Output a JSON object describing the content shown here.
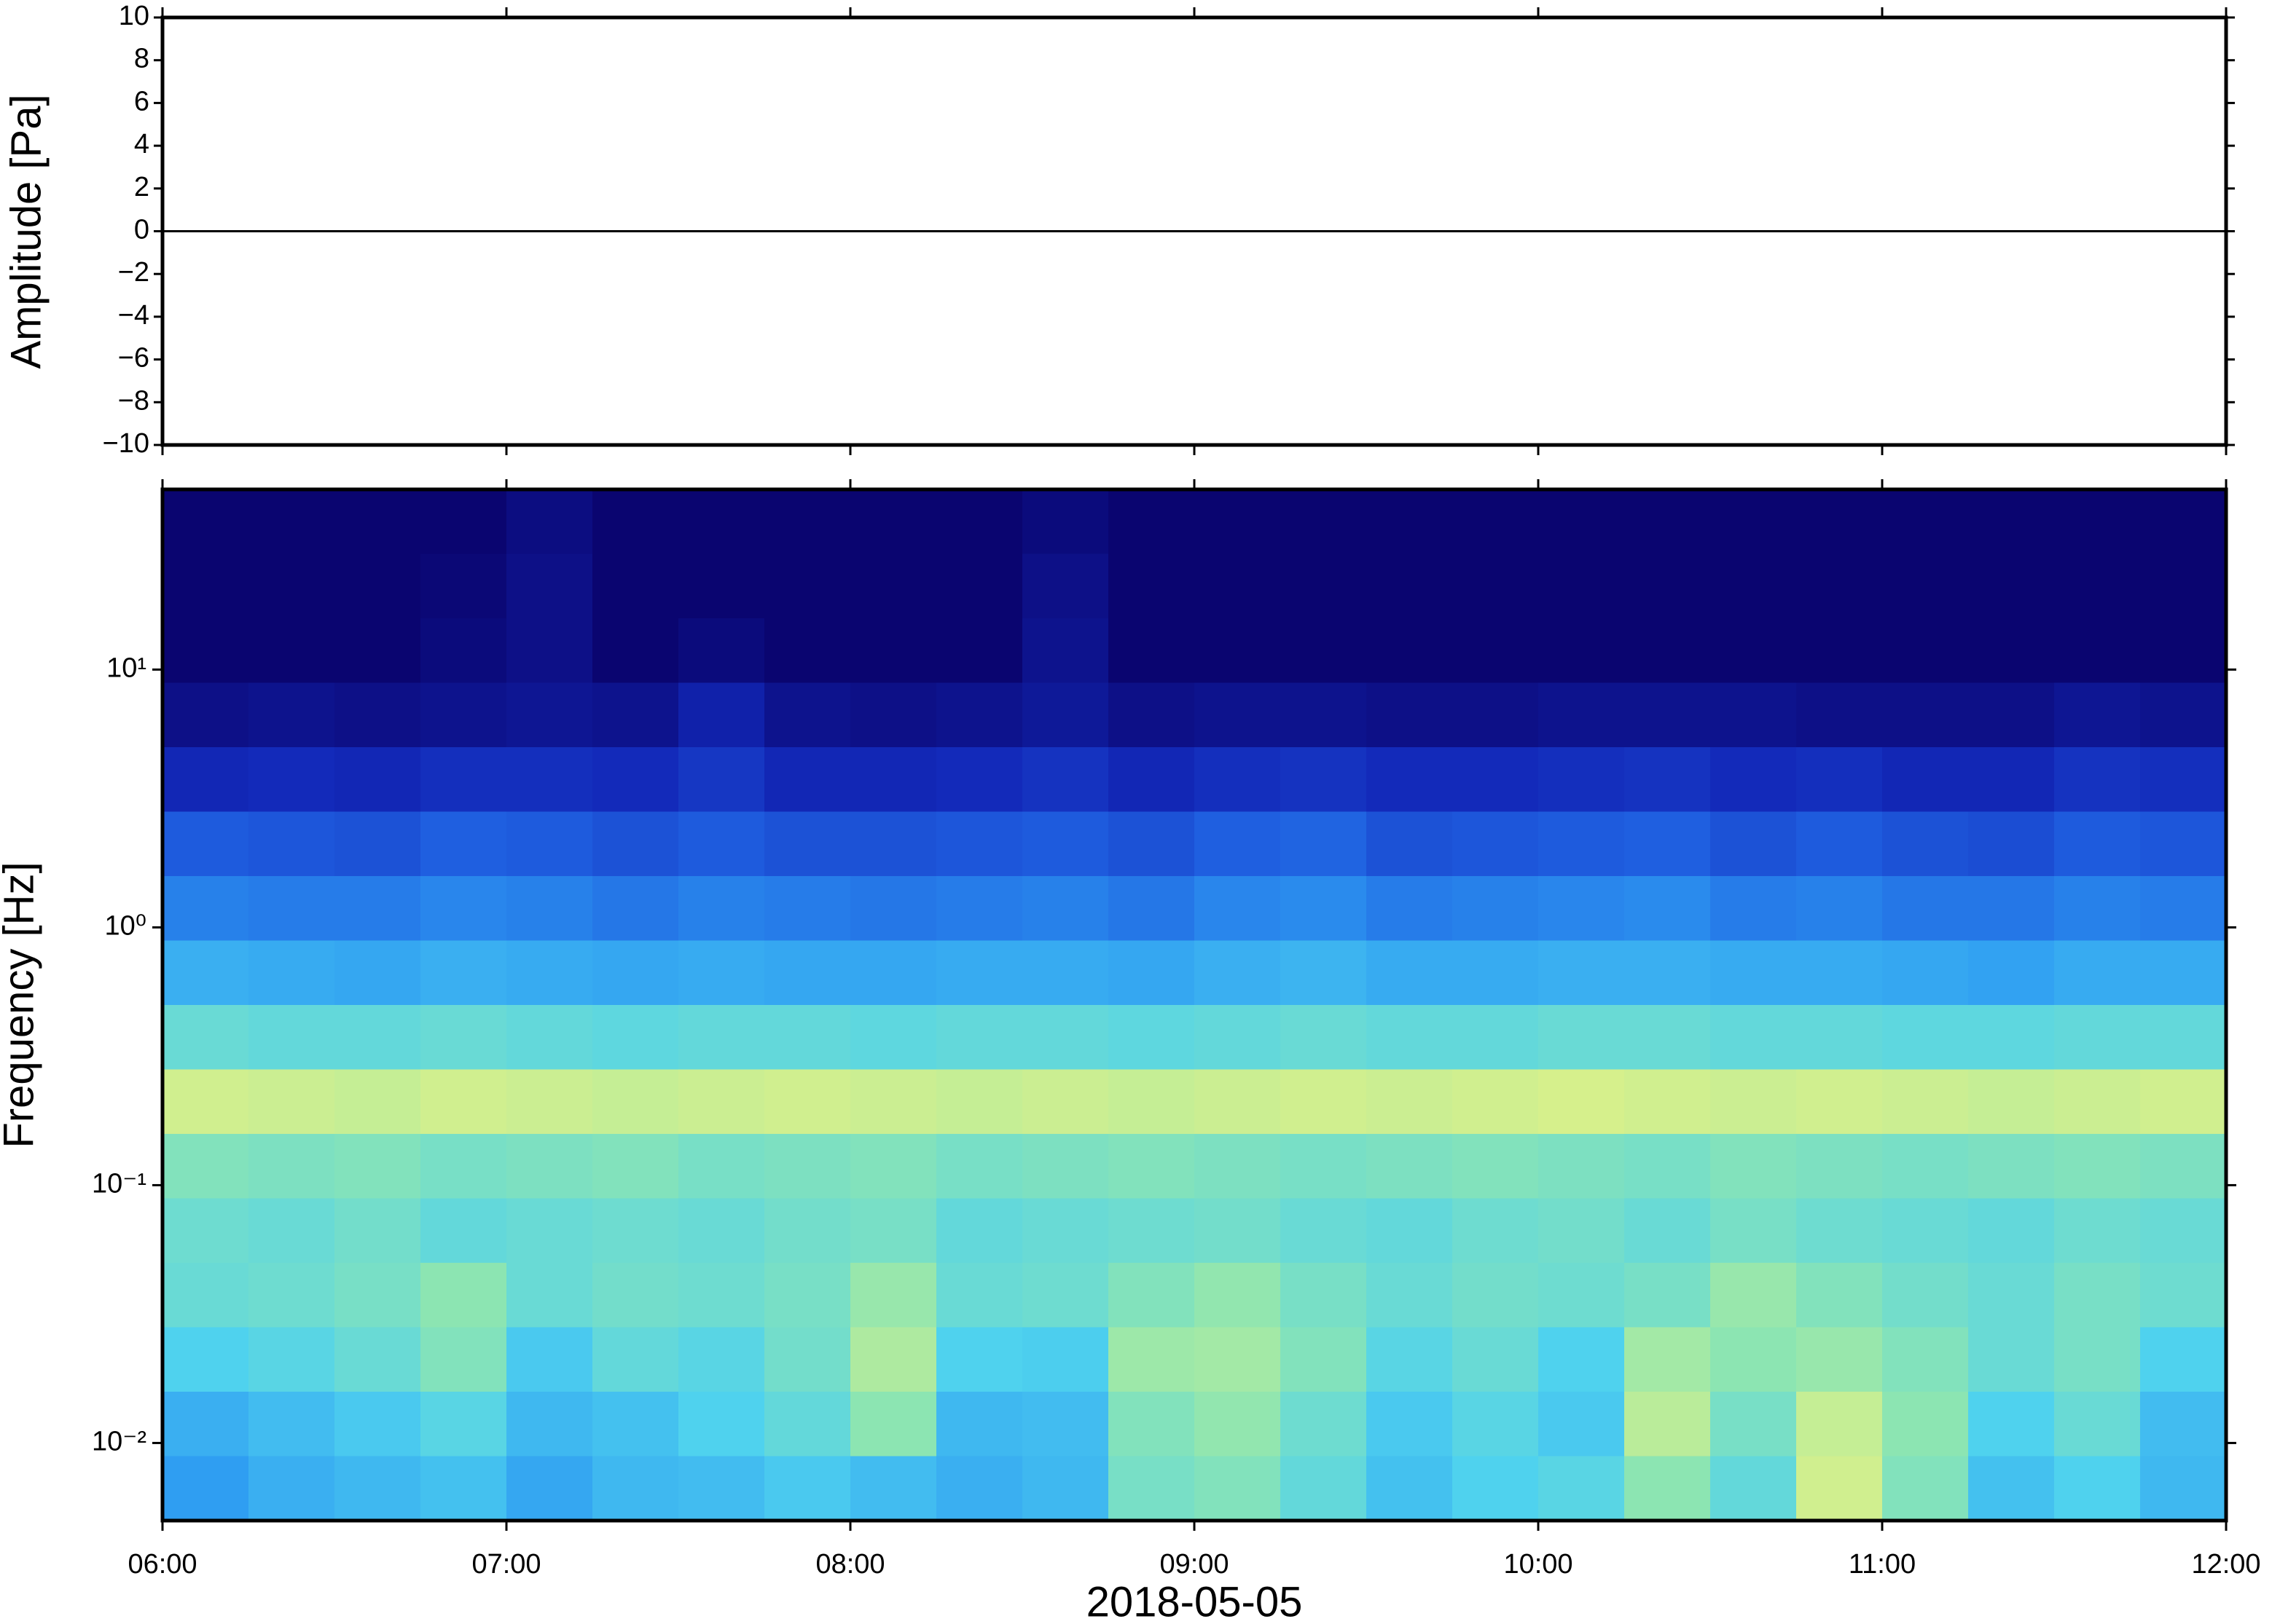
{
  "chart_data": [
    {
      "type": "line",
      "ylabel": "Amplitude [Pa]",
      "color": "#000000",
      "x": [
        "06:00",
        "06:30",
        "07:00",
        "07:30",
        "08:00",
        "08:30",
        "09:00",
        "09:30",
        "10:00",
        "10:30",
        "11:00",
        "11:30",
        "12:00"
      ],
      "values": [
        0,
        0,
        0,
        0,
        0,
        0,
        0,
        0,
        0,
        0,
        0,
        0,
        0
      ],
      "xlim": [
        "06:00",
        "12:00"
      ],
      "ylim": [
        -10,
        10
      ],
      "yticks": [
        {
          "value": -10,
          "label": "−10"
        },
        {
          "value": -8,
          "label": "−8"
        },
        {
          "value": -6,
          "label": "−6"
        },
        {
          "value": -4,
          "label": "−4"
        },
        {
          "value": -2,
          "label": "−2"
        },
        0,
        2,
        4,
        6,
        8,
        10
      ]
    },
    {
      "type": "heatmap",
      "ylabel": "Frequency [Hz]",
      "xlabel": "2018-05-05",
      "xlim": [
        "06:00",
        "12:00"
      ],
      "xticks": [
        "06:00",
        "07:00",
        "08:00",
        "09:00",
        "10:00",
        "11:00",
        "12:00"
      ],
      "ylim": [
        0.005,
        50
      ],
      "log_y": true,
      "yticks": [
        {
          "value": 0.01,
          "label": "10⁻²"
        },
        {
          "value": 0.1,
          "label": "10⁻¹"
        },
        {
          "value": 1,
          "label": "10⁰"
        },
        {
          "value": 10,
          "label": "10¹"
        }
      ],
      "colormap": [
        "#0a0570",
        "#1228b8",
        "#1f5fe0",
        "#2e9cf2",
        "#4fd2ee",
        "#8fe6b0",
        "#d6f08c",
        "#f6e27a",
        "#f5b060"
      ],
      "z": [
        [
          0,
          0,
          0,
          0,
          0.03,
          0,
          0,
          0,
          0,
          0,
          0.02,
          0,
          0,
          0,
          0,
          0,
          0,
          0,
          0,
          0,
          0,
          0,
          0,
          0
        ],
        [
          0,
          0,
          0,
          0.01,
          0.04,
          0,
          0,
          0,
          0,
          0,
          0.04,
          0,
          0,
          0,
          0,
          0,
          0,
          0,
          0,
          0,
          0,
          0,
          0,
          0
        ],
        [
          0,
          0,
          0,
          0.02,
          0.04,
          0,
          0.02,
          0,
          0,
          0,
          0.05,
          0,
          0,
          0,
          0,
          0,
          0,
          0,
          0,
          0,
          0,
          0,
          0,
          0
        ],
        [
          0.04,
          0.05,
          0.04,
          0.05,
          0.06,
          0.05,
          0.1,
          0.05,
          0.04,
          0.05,
          0.07,
          0.04,
          0.05,
          0.05,
          0.04,
          0.04,
          0.05,
          0.05,
          0.05,
          0.04,
          0.04,
          0.04,
          0.06,
          0.05
        ],
        [
          0.12,
          0.13,
          0.12,
          0.14,
          0.14,
          0.13,
          0.16,
          0.12,
          0.12,
          0.13,
          0.15,
          0.12,
          0.14,
          0.15,
          0.13,
          0.13,
          0.14,
          0.15,
          0.13,
          0.14,
          0.12,
          0.12,
          0.15,
          0.14
        ],
        [
          0.24,
          0.23,
          0.22,
          0.25,
          0.24,
          0.22,
          0.24,
          0.22,
          0.22,
          0.23,
          0.24,
          0.22,
          0.25,
          0.26,
          0.22,
          0.23,
          0.24,
          0.25,
          0.22,
          0.24,
          0.22,
          0.21,
          0.24,
          0.23
        ],
        [
          0.32,
          0.31,
          0.31,
          0.33,
          0.32,
          0.3,
          0.32,
          0.31,
          0.3,
          0.31,
          0.32,
          0.3,
          0.33,
          0.34,
          0.31,
          0.32,
          0.33,
          0.34,
          0.31,
          0.32,
          0.3,
          0.3,
          0.32,
          0.31
        ],
        [
          0.42,
          0.41,
          0.4,
          0.42,
          0.41,
          0.4,
          0.41,
          0.4,
          0.4,
          0.41,
          0.41,
          0.4,
          0.42,
          0.43,
          0.41,
          0.41,
          0.42,
          0.42,
          0.41,
          0.41,
          0.4,
          0.39,
          0.41,
          0.41
        ],
        [
          0.55,
          0.54,
          0.54,
          0.55,
          0.54,
          0.53,
          0.54,
          0.54,
          0.53,
          0.54,
          0.54,
          0.53,
          0.54,
          0.55,
          0.54,
          0.54,
          0.55,
          0.55,
          0.54,
          0.54,
          0.53,
          0.53,
          0.54,
          0.54
        ],
        [
          0.74,
          0.73,
          0.72,
          0.74,
          0.73,
          0.72,
          0.73,
          0.74,
          0.73,
          0.72,
          0.73,
          0.72,
          0.73,
          0.74,
          0.73,
          0.74,
          0.75,
          0.74,
          0.73,
          0.74,
          0.73,
          0.72,
          0.73,
          0.74
        ],
        [
          0.6,
          0.59,
          0.6,
          0.58,
          0.59,
          0.6,
          0.58,
          0.59,
          0.6,
          0.58,
          0.59,
          0.6,
          0.59,
          0.58,
          0.59,
          0.6,
          0.59,
          0.58,
          0.6,
          0.59,
          0.58,
          0.59,
          0.6,
          0.59
        ],
        [
          0.56,
          0.55,
          0.57,
          0.54,
          0.55,
          0.56,
          0.55,
          0.57,
          0.58,
          0.54,
          0.55,
          0.56,
          0.57,
          0.55,
          0.54,
          0.56,
          0.57,
          0.55,
          0.58,
          0.56,
          0.55,
          0.54,
          0.56,
          0.55
        ],
        [
          0.55,
          0.56,
          0.58,
          0.62,
          0.55,
          0.57,
          0.56,
          0.58,
          0.64,
          0.55,
          0.56,
          0.6,
          0.63,
          0.58,
          0.55,
          0.57,
          0.56,
          0.58,
          0.64,
          0.6,
          0.57,
          0.55,
          0.58,
          0.56
        ],
        [
          0.5,
          0.52,
          0.55,
          0.6,
          0.48,
          0.54,
          0.52,
          0.57,
          0.68,
          0.5,
          0.49,
          0.65,
          0.66,
          0.6,
          0.52,
          0.55,
          0.5,
          0.66,
          0.62,
          0.64,
          0.6,
          0.55,
          0.58,
          0.5
        ],
        [
          0.42,
          0.45,
          0.48,
          0.52,
          0.44,
          0.46,
          0.5,
          0.54,
          0.62,
          0.44,
          0.45,
          0.6,
          0.63,
          0.56,
          0.48,
          0.52,
          0.48,
          0.7,
          0.58,
          0.72,
          0.62,
          0.5,
          0.55,
          0.45
        ],
        [
          0.38,
          0.42,
          0.44,
          0.46,
          0.4,
          0.44,
          0.45,
          0.48,
          0.45,
          0.42,
          0.44,
          0.58,
          0.6,
          0.54,
          0.46,
          0.5,
          0.52,
          0.62,
          0.54,
          0.74,
          0.6,
          0.46,
          0.5,
          0.44
        ]
      ]
    }
  ]
}
